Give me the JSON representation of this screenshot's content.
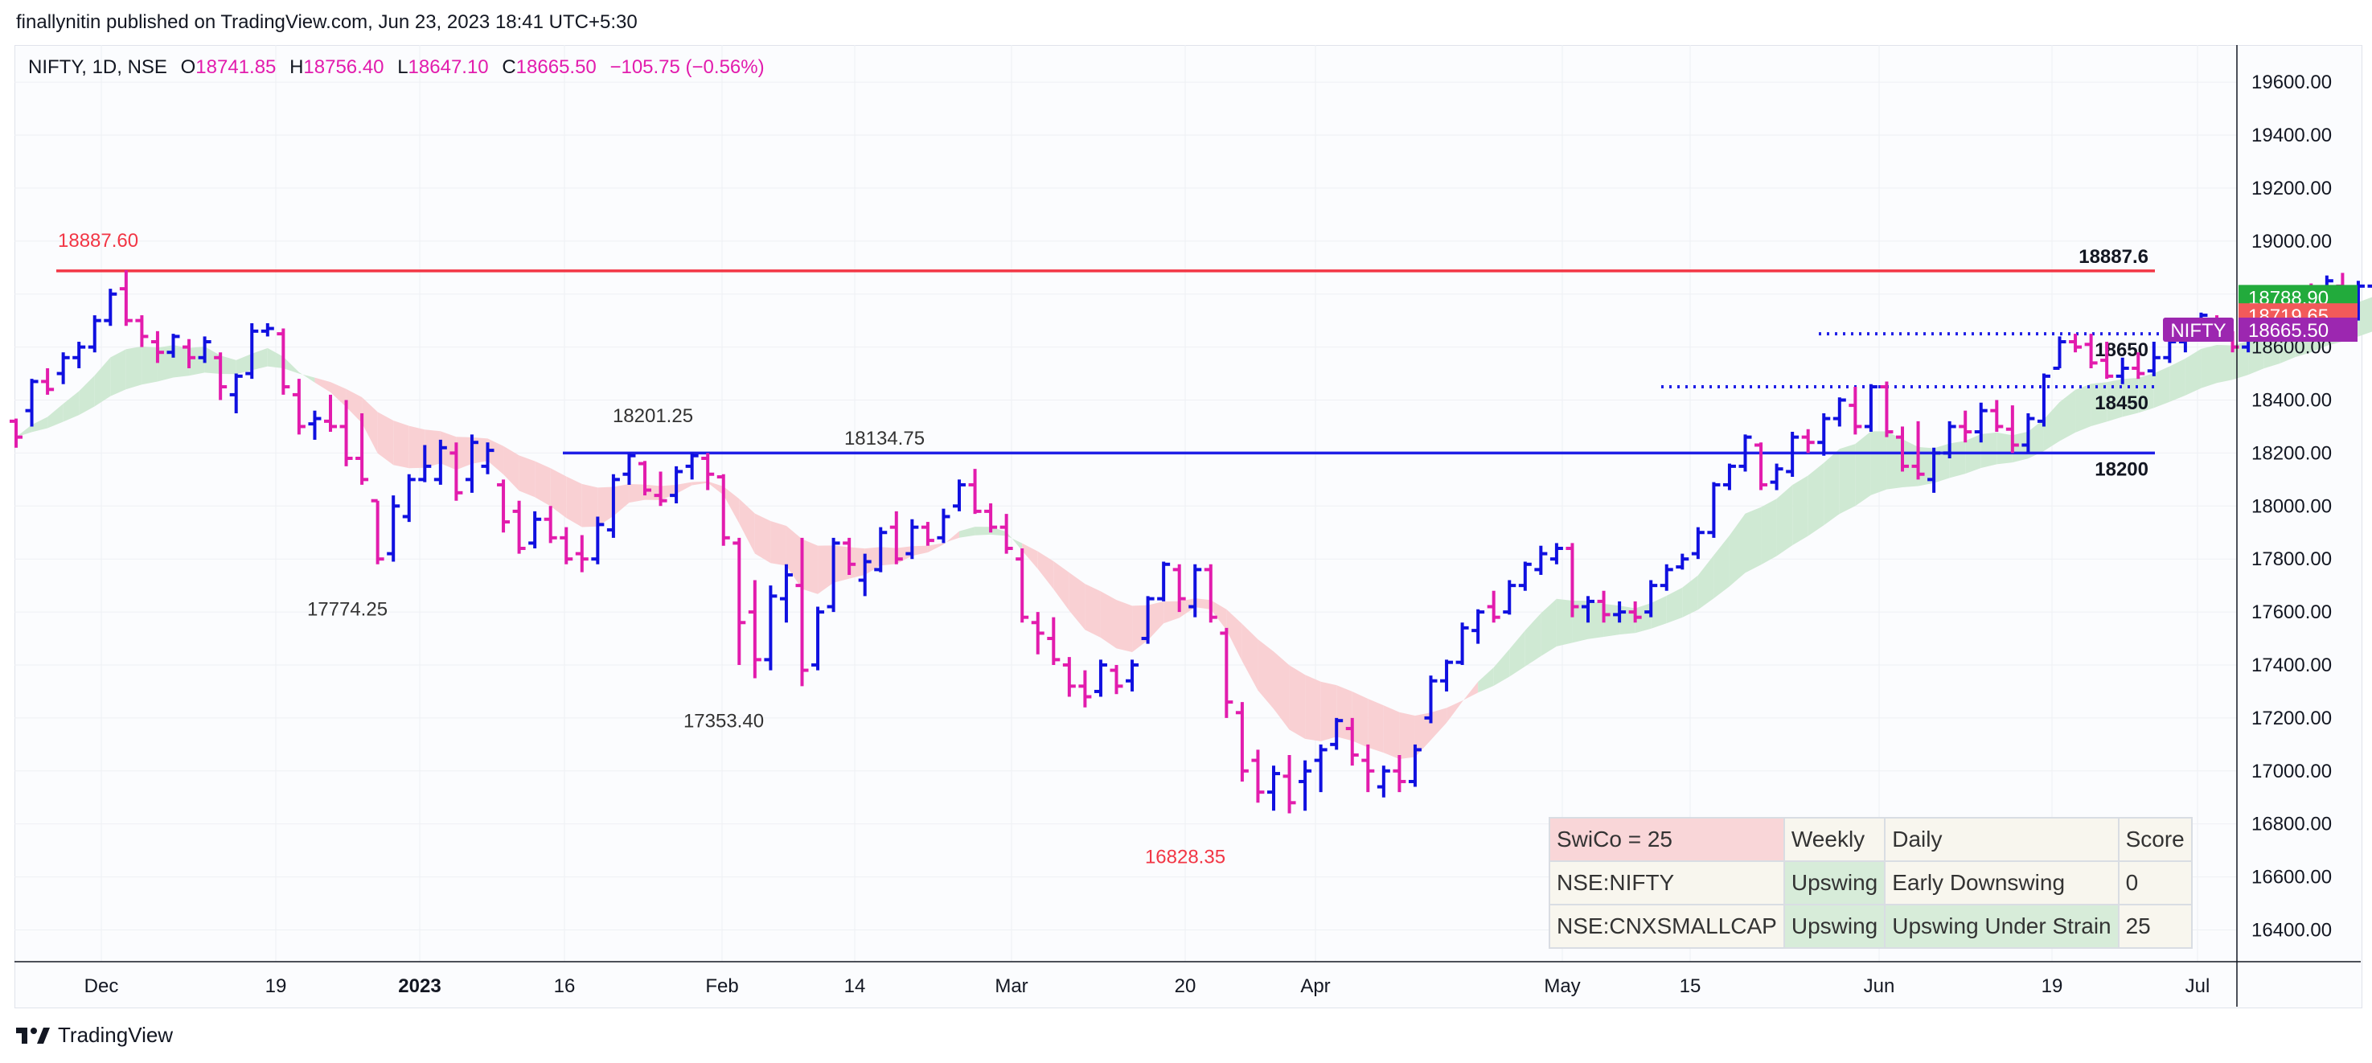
{
  "header": {
    "published_by": "finallynitin published on TradingView.com, Jun 23, 2023 18:41 UTC+5:30"
  },
  "legend": {
    "symbol": "NIFTY, 1D, NSE",
    "open_label": "O",
    "open": "18741.85",
    "high_label": "H",
    "high": "18756.40",
    "low_label": "L",
    "low": "18647.10",
    "close_label": "C",
    "close": "18665.50",
    "change": "−105.75 (−0.56%)"
  },
  "colors": {
    "up": "#1010e0",
    "down": "#e21cad",
    "resistance": "#f23645",
    "support": "#1f1fe6",
    "band_green": "#cfe9d3",
    "band_red": "#f9d0d3"
  },
  "chart_data": {
    "type": "ohlc",
    "x_ticks": [
      "Dec",
      "19",
      "2023",
      "16",
      "Feb",
      "14",
      "Mar",
      "20",
      "Apr",
      "May",
      "15",
      "Jun",
      "19",
      "Jul"
    ],
    "y_ticks": [
      "16400.00",
      "16600.00",
      "16800.00",
      "17000.00",
      "17200.00",
      "17400.00",
      "17600.00",
      "17800.00",
      "18000.00",
      "18200.00",
      "18400.00",
      "18600.00",
      "18800.00",
      "19000.00",
      "19200.00",
      "19400.00",
      "19600.00"
    ],
    "ylim": [
      16280,
      19740
    ],
    "price_axis_labels": [
      {
        "value": 18788.9,
        "text": "18788.90",
        "color": "#22ab3c"
      },
      {
        "value": 18719.65,
        "text": "18719.65",
        "color": "#f25a5a"
      },
      {
        "value": 18665.5,
        "text": "18665.50",
        "color": "#9c27b0",
        "name": "NIFTY"
      }
    ],
    "levels": [
      {
        "value": 18887.6,
        "style": "solid",
        "color": "#f23645",
        "left_label": "18887.60",
        "right_label": "18887.6"
      },
      {
        "value": 18200,
        "style": "solid",
        "color": "#1f1fe6",
        "right_label": "18200"
      },
      {
        "value": 18650,
        "style": "dotted",
        "color": "#1f1fe6",
        "right_label": "18650"
      },
      {
        "value": 18450,
        "style": "dotted",
        "color": "#1f1fe6",
        "right_label": "18450"
      }
    ],
    "annotations": [
      {
        "text": "18201.25",
        "value": 18201.25
      },
      {
        "text": "18134.75",
        "value": 18134.75
      },
      {
        "text": "17774.25",
        "value": 17774.25
      },
      {
        "text": "17353.40",
        "value": 17353.4
      },
      {
        "text": "16828.35",
        "value": 16828.35,
        "color": "#f23645"
      }
    ],
    "series": [
      {
        "name": "NIFTY",
        "bars": [
          [
            18320,
            18330,
            18220,
            18260
          ],
          [
            18360,
            18480,
            18300,
            18470
          ],
          [
            18470,
            18520,
            18420,
            18440
          ],
          [
            18500,
            18580,
            18460,
            18560
          ],
          [
            18560,
            18620,
            18520,
            18600
          ],
          [
            18600,
            18720,
            18580,
            18700
          ],
          [
            18700,
            18820,
            18680,
            18800
          ],
          [
            18820,
            18890,
            18680,
            18700
          ],
          [
            18700,
            18720,
            18600,
            18640
          ],
          [
            18620,
            18660,
            18540,
            18580
          ],
          [
            18580,
            18650,
            18560,
            18640
          ],
          [
            18600,
            18630,
            18520,
            18560
          ],
          [
            18560,
            18640,
            18540,
            18620
          ],
          [
            18560,
            18580,
            18400,
            18450
          ],
          [
            18420,
            18500,
            18350,
            18490
          ],
          [
            18500,
            18690,
            18480,
            18660
          ],
          [
            18660,
            18690,
            18640,
            18670
          ],
          [
            18650,
            18670,
            18420,
            18450
          ],
          [
            18420,
            18480,
            18270,
            18300
          ],
          [
            18310,
            18360,
            18250,
            18330
          ],
          [
            18320,
            18420,
            18280,
            18300
          ],
          [
            18300,
            18400,
            18150,
            18180
          ],
          [
            18180,
            18350,
            18080,
            18100
          ],
          [
            18020,
            18020,
            17780,
            17800
          ],
          [
            17820,
            18040,
            17790,
            18000
          ],
          [
            17960,
            18120,
            17940,
            18100
          ],
          [
            18100,
            18230,
            18090,
            18150
          ],
          [
            18100,
            18250,
            18080,
            18220
          ],
          [
            18200,
            18240,
            18020,
            18050
          ],
          [
            18100,
            18270,
            18050,
            18240
          ],
          [
            18150,
            18240,
            18120,
            18210
          ],
          [
            18080,
            18100,
            17900,
            17940
          ],
          [
            17980,
            18020,
            17820,
            17840
          ],
          [
            17860,
            17980,
            17840,
            17950
          ],
          [
            17950,
            18000,
            17860,
            17880
          ],
          [
            17880,
            17920,
            17780,
            17800
          ],
          [
            17820,
            17890,
            17750,
            17800
          ],
          [
            17800,
            17960,
            17780,
            17930
          ],
          [
            17910,
            18120,
            17880,
            18100
          ],
          [
            18120,
            18200,
            18080,
            18190
          ],
          [
            18160,
            18170,
            18040,
            18060
          ],
          [
            18040,
            18130,
            18000,
            18020
          ],
          [
            18040,
            18150,
            18010,
            18130
          ],
          [
            18150,
            18200,
            18100,
            18190
          ],
          [
            18180,
            18200,
            18060,
            18120
          ],
          [
            18110,
            18120,
            17850,
            17880
          ],
          [
            17860,
            17880,
            17400,
            17560
          ],
          [
            17600,
            17720,
            17350,
            17420
          ],
          [
            17420,
            17700,
            17380,
            17660
          ],
          [
            17650,
            17780,
            17560,
            17740
          ],
          [
            17700,
            17880,
            17320,
            17380
          ],
          [
            17400,
            17620,
            17380,
            17600
          ],
          [
            17620,
            17880,
            17600,
            17860
          ],
          [
            17860,
            17880,
            17740,
            17780
          ],
          [
            17720,
            17820,
            17660,
            17790
          ],
          [
            17760,
            17920,
            17750,
            17900
          ],
          [
            17920,
            17980,
            17780,
            17800
          ],
          [
            17820,
            17950,
            17800,
            17920
          ],
          [
            17920,
            17940,
            17850,
            17870
          ],
          [
            17880,
            17990,
            17860,
            17960
          ],
          [
            18000,
            18100,
            17980,
            18080
          ],
          [
            18080,
            18140,
            17970,
            17980
          ],
          [
            17980,
            18010,
            17900,
            17920
          ],
          [
            17920,
            17970,
            17820,
            17840
          ],
          [
            17800,
            17840,
            17560,
            17580
          ],
          [
            17560,
            17600,
            17440,
            17520
          ],
          [
            17500,
            17580,
            17400,
            17420
          ],
          [
            17400,
            17430,
            17280,
            17320
          ],
          [
            17320,
            17380,
            17240,
            17280
          ],
          [
            17300,
            17420,
            17280,
            17400
          ],
          [
            17380,
            17400,
            17290,
            17320
          ],
          [
            17340,
            17420,
            17300,
            17400
          ],
          [
            17500,
            17660,
            17480,
            17650
          ],
          [
            17650,
            17790,
            17640,
            17780
          ],
          [
            17760,
            17780,
            17600,
            17650
          ],
          [
            17620,
            17780,
            17580,
            17760
          ],
          [
            17760,
            17780,
            17560,
            17580
          ],
          [
            17520,
            17540,
            17200,
            17260
          ],
          [
            17220,
            17260,
            16960,
            17000
          ],
          [
            17040,
            17080,
            16880,
            16920
          ],
          [
            16920,
            17020,
            16850,
            16990
          ],
          [
            16980,
            17060,
            16840,
            16880
          ],
          [
            16960,
            17040,
            16850,
            17000
          ],
          [
            17040,
            17100,
            16920,
            17080
          ],
          [
            17100,
            17200,
            17080,
            17190
          ],
          [
            17160,
            17200,
            17020,
            17060
          ],
          [
            17040,
            17100,
            16920,
            17000
          ],
          [
            16940,
            17020,
            16900,
            17000
          ],
          [
            17000,
            17060,
            16920,
            16960
          ],
          [
            16960,
            17100,
            16940,
            17080
          ],
          [
            17200,
            17360,
            17180,
            17340
          ],
          [
            17340,
            17420,
            17300,
            17410
          ],
          [
            17410,
            17560,
            17400,
            17540
          ],
          [
            17530,
            17610,
            17480,
            17600
          ],
          [
            17620,
            17680,
            17560,
            17580
          ],
          [
            17600,
            17720,
            17590,
            17700
          ],
          [
            17700,
            17790,
            17680,
            17780
          ],
          [
            17760,
            17850,
            17740,
            17820
          ],
          [
            17800,
            17860,
            17780,
            17840
          ],
          [
            17840,
            17860,
            17580,
            17620
          ],
          [
            17620,
            17660,
            17560,
            17640
          ],
          [
            17640,
            17680,
            17560,
            17590
          ],
          [
            17590,
            17640,
            17560,
            17600
          ],
          [
            17600,
            17640,
            17560,
            17580
          ],
          [
            17600,
            17720,
            17580,
            17700
          ],
          [
            17700,
            17780,
            17680,
            17760
          ],
          [
            17770,
            17820,
            17760,
            17800
          ],
          [
            17820,
            17920,
            17800,
            17900
          ],
          [
            17900,
            18090,
            17880,
            18080
          ],
          [
            18080,
            18160,
            18060,
            18150
          ],
          [
            18150,
            18270,
            18130,
            18260
          ],
          [
            18230,
            18240,
            18060,
            18080
          ],
          [
            18090,
            18160,
            18060,
            18140
          ],
          [
            18130,
            18280,
            18110,
            18260
          ],
          [
            18260,
            18290,
            18200,
            18240
          ],
          [
            18240,
            18350,
            18190,
            18330
          ],
          [
            18330,
            18410,
            18300,
            18400
          ],
          [
            18380,
            18450,
            18270,
            18300
          ],
          [
            18300,
            18460,
            18280,
            18450
          ],
          [
            18450,
            18470,
            18260,
            18280
          ],
          [
            18260,
            18300,
            18130,
            18150
          ],
          [
            18150,
            18320,
            18100,
            18120
          ],
          [
            18100,
            18220,
            18050,
            18200
          ],
          [
            18200,
            18320,
            18180,
            18300
          ],
          [
            18300,
            18360,
            18240,
            18280
          ],
          [
            18280,
            18390,
            18240,
            18360
          ],
          [
            18360,
            18400,
            18280,
            18300
          ],
          [
            18290,
            18380,
            18200,
            18230
          ],
          [
            18230,
            18350,
            18200,
            18330
          ],
          [
            18320,
            18500,
            18300,
            18490
          ],
          [
            18520,
            18640,
            18520,
            18620
          ],
          [
            18620,
            18650,
            18580,
            18600
          ],
          [
            18610,
            18650,
            18520,
            18540
          ],
          [
            18550,
            18620,
            18480,
            18490
          ],
          [
            18490,
            18560,
            18460,
            18520
          ],
          [
            18520,
            18580,
            18480,
            18500
          ],
          [
            18510,
            18620,
            18490,
            18560
          ],
          [
            18560,
            18640,
            18540,
            18620
          ],
          [
            18620,
            18680,
            18580,
            18660
          ],
          [
            18660,
            18730,
            18640,
            18720
          ],
          [
            18700,
            18720,
            18640,
            18660
          ],
          [
            18640,
            18660,
            18580,
            18600
          ],
          [
            18600,
            18700,
            18580,
            18680
          ],
          [
            18680,
            18780,
            18660,
            18760
          ],
          [
            18760,
            18800,
            18700,
            18720
          ],
          [
            18720,
            18830,
            18700,
            18810
          ],
          [
            18800,
            18840,
            18740,
            18760
          ],
          [
            18760,
            18870,
            18740,
            18850
          ],
          [
            18830,
            18880,
            18720,
            18780
          ],
          [
            18720,
            18850,
            18700,
            18830
          ],
          [
            18830,
            18890,
            18790,
            18870
          ],
          [
            18860,
            18890,
            18790,
            18800
          ],
          [
            18800,
            18830,
            18740,
            18760
          ],
          [
            18741.85,
            18756.4,
            18647.1,
            18665.5
          ]
        ]
      }
    ]
  },
  "swico_table": {
    "rows": [
      [
        "SwiCo = 25",
        "Weekly",
        "Daily",
        "Score"
      ],
      [
        "NSE:NIFTY",
        "Upswing",
        "Early Downswing",
        "0"
      ],
      [
        "NSE:CNXSMALLCAP",
        "Upswing",
        "Upswing Under Strain",
        "25"
      ]
    ]
  },
  "brand": {
    "logo": "tradingview-logo",
    "name": "TradingView"
  }
}
